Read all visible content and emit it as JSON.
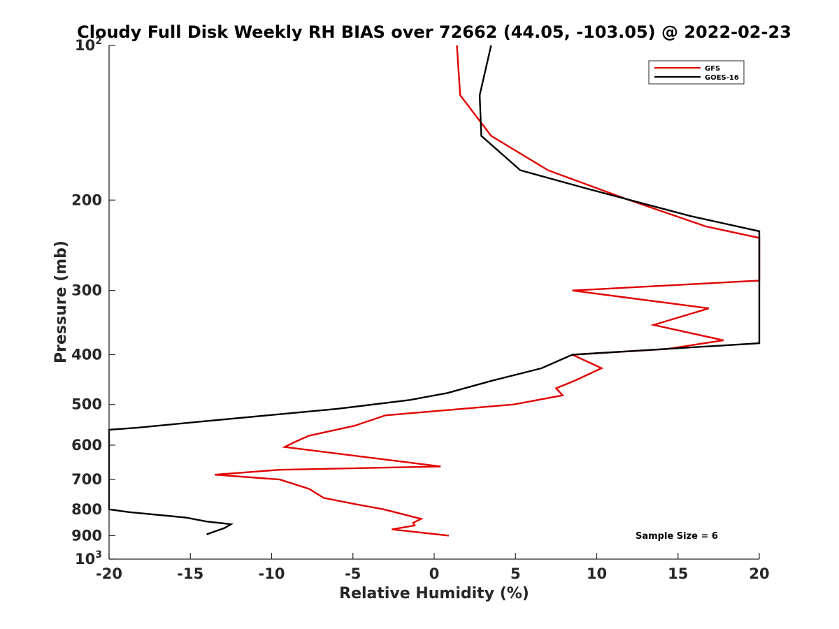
{
  "chart_data": {
    "type": "line",
    "title": "Cloudy Full Disk Weekly RH BIAS over 72662 (44.05, -103.05) @ 2022-02-23",
    "xlabel": "Relative Humidity (%)",
    "ylabel": "Pressure (mb)",
    "xlim": [
      -20,
      20
    ],
    "ylim": [
      100,
      1000
    ],
    "yscale": "log",
    "y_reversed": true,
    "grid": false,
    "legend_position": "top-right",
    "x_ticks": [
      "-20",
      "-15",
      "-10",
      "-5",
      "0",
      "5",
      "10",
      "15",
      "20"
    ],
    "y_ticks": [
      {
        "value": 100,
        "base": "10",
        "exp": "2"
      },
      {
        "value": 200,
        "label": "200"
      },
      {
        "value": 300,
        "label": "300"
      },
      {
        "value": 400,
        "label": "400"
      },
      {
        "value": 500,
        "label": "500"
      },
      {
        "value": 600,
        "label": "600"
      },
      {
        "value": 700,
        "label": "700"
      },
      {
        "value": 800,
        "label": "800"
      },
      {
        "value": 900,
        "label": "900"
      },
      {
        "value": 1000,
        "base": "10",
        "exp": "3"
      }
    ],
    "series": [
      {
        "name": "GFS",
        "color": "#e00000",
        "points": [
          [
            1.4,
            100
          ],
          [
            1.6,
            125
          ],
          [
            3.5,
            150
          ],
          [
            7.0,
            175
          ],
          [
            12.0,
            200
          ],
          [
            16.7,
            225
          ],
          [
            20.0,
            237
          ],
          [
            20.0,
            287
          ],
          [
            8.5,
            300
          ],
          [
            16.9,
            325
          ],
          [
            13.5,
            350
          ],
          [
            17.8,
            375
          ],
          [
            14.3,
            390
          ],
          [
            8.5,
            400
          ],
          [
            10.3,
            425
          ],
          [
            8.6,
            450
          ],
          [
            7.5,
            465
          ],
          [
            7.9,
            480
          ],
          [
            4.9,
            500
          ],
          [
            -3.0,
            525
          ],
          [
            -4.9,
            550
          ],
          [
            -7.7,
            575
          ],
          [
            -8.5,
            590
          ],
          [
            -9.2,
            605
          ],
          [
            0.4,
            660
          ],
          [
            -9.5,
            670
          ],
          [
            -13.5,
            685
          ],
          [
            -9.5,
            700
          ],
          [
            -7.7,
            730
          ],
          [
            -6.8,
            760
          ],
          [
            -5.0,
            780
          ],
          [
            -3.1,
            800
          ],
          [
            -0.8,
            835
          ],
          [
            -1.3,
            850
          ],
          [
            -1.2,
            860
          ],
          [
            -2.6,
            875
          ],
          [
            0.9,
            900
          ]
        ]
      },
      {
        "name": "GOES-16",
        "color": "#000000",
        "points": [
          [
            3.5,
            100
          ],
          [
            2.8,
            125
          ],
          [
            2.9,
            150
          ],
          [
            5.3,
            175
          ],
          [
            9.4,
            190
          ],
          [
            15.8,
            215
          ],
          [
            20.0,
            230
          ],
          [
            20.0,
            380
          ],
          [
            8.5,
            400
          ],
          [
            6.6,
            425
          ],
          [
            3.5,
            450
          ],
          [
            0.8,
            475
          ],
          [
            -1.5,
            490
          ],
          [
            -6.0,
            510
          ],
          [
            -14.4,
            540
          ],
          [
            -18.3,
            555
          ],
          [
            -20.0,
            560
          ],
          [
            -20.0,
            800
          ],
          [
            -18.8,
            810
          ],
          [
            -15.3,
            830
          ],
          [
            -14.0,
            845
          ],
          [
            -12.5,
            855
          ],
          [
            -12.9,
            870
          ],
          [
            -14.0,
            895
          ]
        ]
      }
    ],
    "annotation": "Sample Size = 6"
  }
}
